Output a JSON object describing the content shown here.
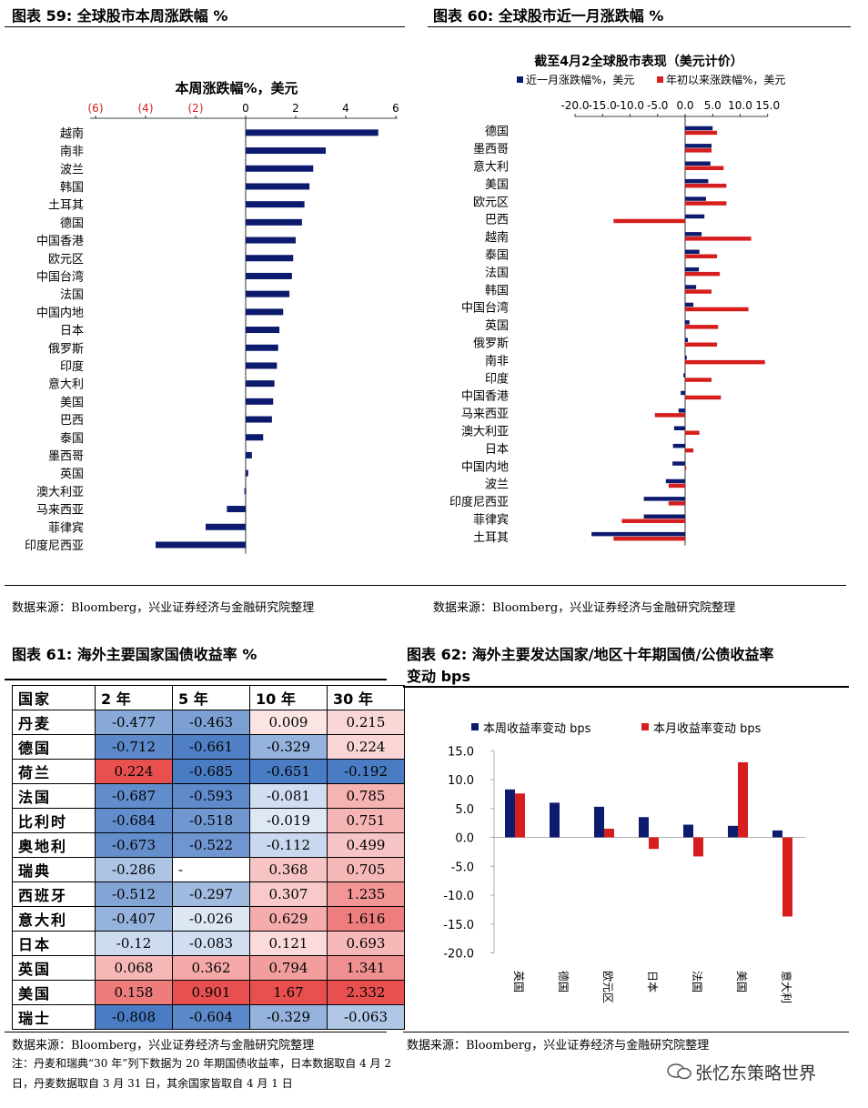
{
  "fig59": {
    "title": "图表 59:  全球股市本周涨跌幅  %",
    "source": "数据来源：Bloomberg，兴业证券经济与金融研究院整理"
  },
  "fig60": {
    "title": "图表 60:  全球股市近一月涨跌幅  %",
    "source": "数据来源：Bloomberg，兴业证券经济与金融研究院整理"
  },
  "fig61": {
    "title": "图表 61:  海外主要国家国债收益率  %",
    "source": "数据来源：Bloomberg，兴业证券经济与金融研究院整理",
    "note": "注：丹麦和瑞典“30 年”列下数据为 20 年期国债收益率，日本数据取自 4 月 2 日，丹麦数据取自 3 月 31 日，其余国家皆取自 4 月 1 日",
    "headers": [
      "国家",
      "2 年",
      "5 年",
      "10 年",
      "30 年"
    ],
    "rows": [
      {
        "country": "丹麦",
        "values": [
          "-0.477",
          "-0.463",
          "0.009",
          "0.215"
        ]
      },
      {
        "country": "德国",
        "values": [
          "-0.712",
          "-0.661",
          "-0.329",
          "0.224"
        ]
      },
      {
        "country": "荷兰",
        "values": [
          "0.224",
          "-0.685",
          "-0.651",
          "-0.192"
        ]
      },
      {
        "country": "法国",
        "values": [
          "-0.687",
          "-0.593",
          "-0.081",
          "0.785"
        ]
      },
      {
        "country": "比利时",
        "values": [
          "-0.684",
          "-0.518",
          "-0.019",
          "0.751"
        ]
      },
      {
        "country": "奥地利",
        "values": [
          "-0.673",
          "-0.522",
          "-0.112",
          "0.499"
        ]
      },
      {
        "country": "瑞典",
        "values": [
          "-0.286",
          "-",
          "0.368",
          "0.705"
        ]
      },
      {
        "country": "西班牙",
        "values": [
          "-0.512",
          "-0.297",
          "0.307",
          "1.235"
        ]
      },
      {
        "country": "意大利",
        "values": [
          "-0.407",
          "-0.026",
          "0.629",
          "1.616"
        ]
      },
      {
        "country": "日本",
        "values": [
          "-0.12",
          "-0.083",
          "0.121",
          "0.693"
        ]
      },
      {
        "country": "英国",
        "values": [
          "0.068",
          "0.362",
          "0.794",
          "1.341"
        ]
      },
      {
        "country": "美国",
        "values": [
          "0.158",
          "0.901",
          "1.67",
          "2.332"
        ]
      },
      {
        "country": "瑞士",
        "values": [
          "-0.808",
          "-0.604",
          "-0.329",
          "-0.063"
        ]
      }
    ],
    "colors": {
      "negative": "#4a7cc4",
      "positive": "#e8504f"
    }
  },
  "fig62": {
    "title_line1": "图表 62:  海外主要发达国家/地区十年期国债/公债收益率",
    "title_line2": "变动  bps",
    "source": "数据来源：Bloomberg，兴业证券经济与金融研究院整理"
  },
  "watermark": "张忆东策略世界",
  "chart_data": [
    {
      "type": "bar",
      "orientation": "horizontal",
      "title": "本周涨跌幅%，美元",
      "categories": [
        "越南",
        "南非",
        "波兰",
        "韩国",
        "土耳其",
        "德国",
        "中国香港",
        "欧元区",
        "中国台湾",
        "法国",
        "中国内地",
        "日本",
        "俄罗斯",
        "印度",
        "意大利",
        "美国",
        "巴西",
        "泰国",
        "墨西哥",
        "英国",
        "澳大利亚",
        "马来西亚",
        "菲律宾",
        "印度尼西亚"
      ],
      "values": [
        5.3,
        3.2,
        2.7,
        2.55,
        2.35,
        2.25,
        2.0,
        1.9,
        1.85,
        1.75,
        1.5,
        1.35,
        1.3,
        1.25,
        1.15,
        1.1,
        1.05,
        0.7,
        0.25,
        0.1,
        -0.05,
        -0.75,
        -1.6,
        -3.6
      ],
      "xlim": [
        -8,
        6
      ],
      "ticks": [
        -6,
        -4,
        -2,
        0,
        2,
        4,
        6
      ],
      "tick_labels": [
        "(6)",
        "(4)",
        "(2)",
        "0",
        "2",
        "4",
        "6"
      ],
      "colors": {
        "bar": "#0d1b6e",
        "neg_tick": "#d71e1e"
      }
    },
    {
      "type": "bar",
      "orientation": "horizontal",
      "title": "截至4月2全球股市表现（美元计价）",
      "categories": [
        "德国",
        "墨西哥",
        "意大利",
        "美国",
        "欧元区",
        "巴西",
        "越南",
        "泰国",
        "法国",
        "韩国",
        "中国台湾",
        "英国",
        "俄罗斯",
        "南非",
        "印度",
        "中国香港",
        "马来西亚",
        "澳大利亚",
        "日本",
        "中国内地",
        "波兰",
        "印度尼西亚",
        "菲律宾",
        "土耳其"
      ],
      "series": [
        {
          "name": "近一月涨跌幅%，美元",
          "color": "#0d1b6e",
          "values": [
            5.0,
            4.8,
            4.6,
            4.2,
            3.8,
            3.5,
            3.0,
            2.6,
            2.5,
            2.0,
            1.5,
            0.8,
            0.5,
            0.3,
            -0.3,
            -0.8,
            -1.2,
            -2.0,
            -2.2,
            -2.3,
            -3.5,
            -7.5,
            -7.5,
            -17.0
          ]
        },
        {
          "name": "年初以来涨跌幅%，美元",
          "color": "#d71e1e",
          "values": [
            5.8,
            4.8,
            7.0,
            7.5,
            7.5,
            -13.0,
            12.0,
            5.8,
            6.3,
            4.8,
            11.5,
            6.0,
            5.8,
            14.5,
            4.8,
            6.5,
            -5.5,
            2.6,
            1.5,
            0.2,
            -3.0,
            -3.0,
            -11.5,
            -13.0
          ]
        }
      ],
      "xlim": [
        -20,
        15
      ],
      "ticks": [
        -20,
        -15,
        -10,
        -5,
        0,
        5,
        10,
        15
      ],
      "tick_labels": [
        "-20.0",
        "-15.0",
        "-10.0",
        "-5.0",
        "0.0",
        "5.0",
        "10.0",
        "15.0"
      ],
      "legend": "top"
    },
    {
      "type": "bar",
      "categories": [
        "英国",
        "德国",
        "欧元区",
        "日本",
        "法国",
        "美国",
        "意大利"
      ],
      "series": [
        {
          "name": "本周收益率变动 bps",
          "color": "#0d1b6e",
          "values": [
            8.3,
            6.0,
            5.3,
            3.5,
            2.2,
            2.0,
            1.2
          ]
        },
        {
          "name": "本月收益率变动 bps",
          "color": "#d71e1e",
          "values": [
            7.6,
            0.0,
            1.5,
            -2.0,
            -3.3,
            13.0,
            -13.7
          ]
        }
      ],
      "ylim": [
        -20,
        15
      ],
      "ticks": [
        15,
        10,
        5,
        0,
        -5,
        -10,
        -15,
        -20
      ],
      "tick_labels": [
        "15.0",
        "10.0",
        "5.0",
        "0.0",
        "-5.0",
        "-10.0",
        "-15.0",
        "-20.0"
      ],
      "legend": "top"
    }
  ]
}
